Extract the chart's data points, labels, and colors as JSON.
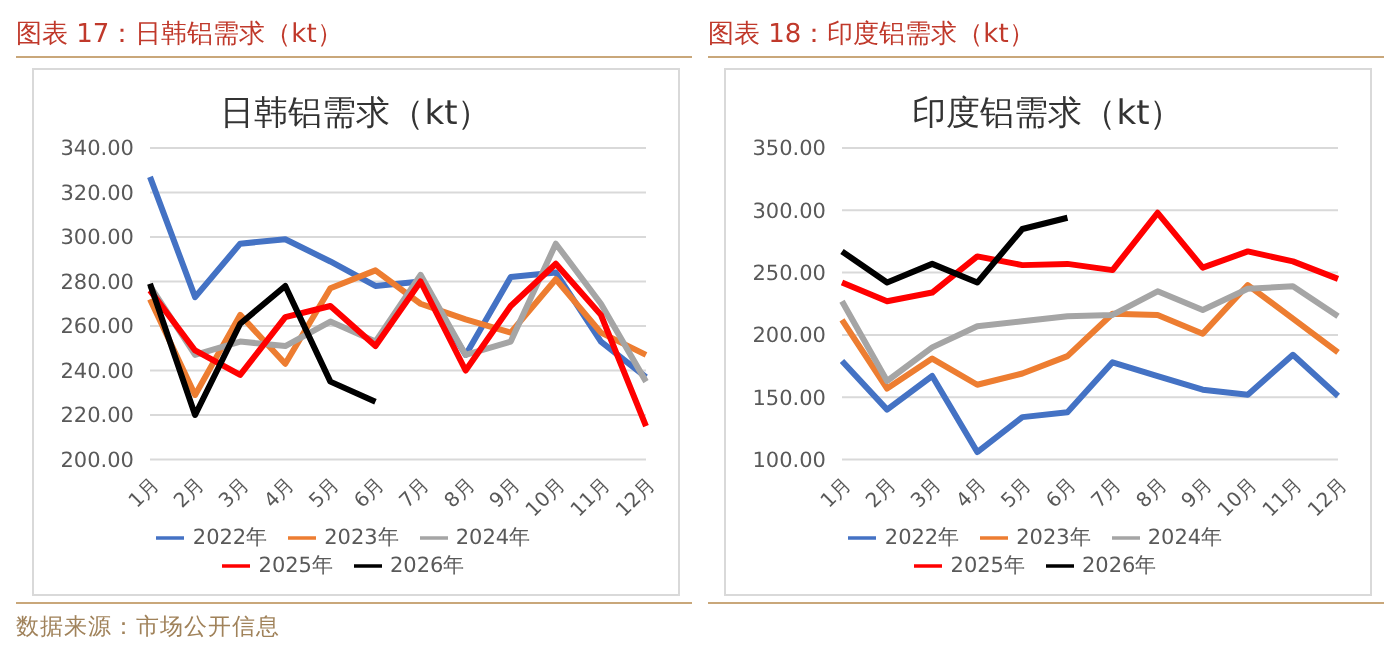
{
  "chart_data": [
    {
      "type": "line",
      "title": "图表 17：日韩铝需求（kt）",
      "subtitle": "日韩铝需求（kt）",
      "categories": [
        "1月",
        "2月",
        "3月",
        "4月",
        "5月",
        "6月",
        "7月",
        "8月",
        "9月",
        "10月",
        "11月",
        "12月"
      ],
      "series": [
        {
          "name": "2022年",
          "color": "#4472c4",
          "values": [
            327,
            273,
            297,
            299,
            289,
            278,
            280,
            247,
            282,
            284,
            253,
            237
          ]
        },
        {
          "name": "2023年",
          "color": "#ed7d31",
          "values": [
            272,
            229,
            265,
            243,
            277,
            285,
            270,
            263,
            257,
            281,
            257,
            247
          ]
        },
        {
          "name": "2024年",
          "color": "#a5a5a5",
          "values": [
            278,
            247,
            253,
            251,
            262,
            253,
            283,
            247,
            253,
            297,
            270,
            235
          ]
        },
        {
          "name": "2025年",
          "color": "#ff0000",
          "values": [
            276,
            249,
            238,
            264,
            269,
            251,
            280,
            240,
            269,
            288,
            265,
            215
          ]
        },
        {
          "name": "2026年",
          "color": "#000000",
          "values": [
            279,
            220,
            261,
            278,
            235,
            226,
            null,
            null,
            null,
            null,
            null,
            null
          ]
        }
      ],
      "ylim": [
        200,
        340
      ],
      "yticks": [
        {
          "value": 200,
          "label": "200.00"
        },
        {
          "value": 220,
          "label": "220.00"
        },
        {
          "value": 240,
          "label": "240.00"
        },
        {
          "value": 260,
          "label": "260.00"
        },
        {
          "value": 280,
          "label": "280.00"
        },
        {
          "value": 300,
          "label": "300.00"
        },
        {
          "value": 320,
          "label": "320.00"
        },
        {
          "value": 340,
          "label": "340.00"
        }
      ],
      "grid": "y",
      "legend": "bottom",
      "marker": "none",
      "annotations": [
        "数据来源：市场公开信息"
      ]
    },
    {
      "type": "line",
      "title": "图表 18：印度铝需求（kt）",
      "subtitle": "印度铝需求（kt）",
      "categories": [
        "1月",
        "2月",
        "3月",
        "4月",
        "5月",
        "6月",
        "7月",
        "8月",
        "9月",
        "10月",
        "11月",
        "12月"
      ],
      "series": [
        {
          "name": "2022年",
          "color": "#4472c4",
          "values": [
            179,
            140,
            167,
            106,
            134,
            138,
            178,
            167,
            156,
            152,
            184,
            151
          ]
        },
        {
          "name": "2023年",
          "color": "#ed7d31",
          "values": [
            212,
            157,
            181,
            160,
            169,
            183,
            217,
            216,
            201,
            240,
            213,
            186
          ]
        },
        {
          "name": "2024年",
          "color": "#a5a5a5",
          "values": [
            227,
            163,
            190,
            207,
            211,
            215,
            216,
            235,
            220,
            237,
            239,
            215
          ]
        },
        {
          "name": "2025年",
          "color": "#ff0000",
          "values": [
            242,
            227,
            234,
            263,
            256,
            257,
            252,
            298,
            254,
            267,
            259,
            245
          ]
        },
        {
          "name": "2026年",
          "color": "#000000",
          "values": [
            267,
            242,
            257,
            242,
            285,
            294,
            null,
            null,
            null,
            null,
            null,
            null
          ]
        }
      ],
      "ylim": [
        100,
        350
      ],
      "yticks": [
        {
          "value": 100,
          "label": "100.00"
        },
        {
          "value": 150,
          "label": "150.00"
        },
        {
          "value": 200,
          "label": "200.00"
        },
        {
          "value": 250,
          "label": "250.00"
        },
        {
          "value": 300,
          "label": "300.00"
        },
        {
          "value": 350,
          "label": "350.00"
        }
      ],
      "grid": "y",
      "legend": "bottom",
      "marker": "none"
    }
  ]
}
